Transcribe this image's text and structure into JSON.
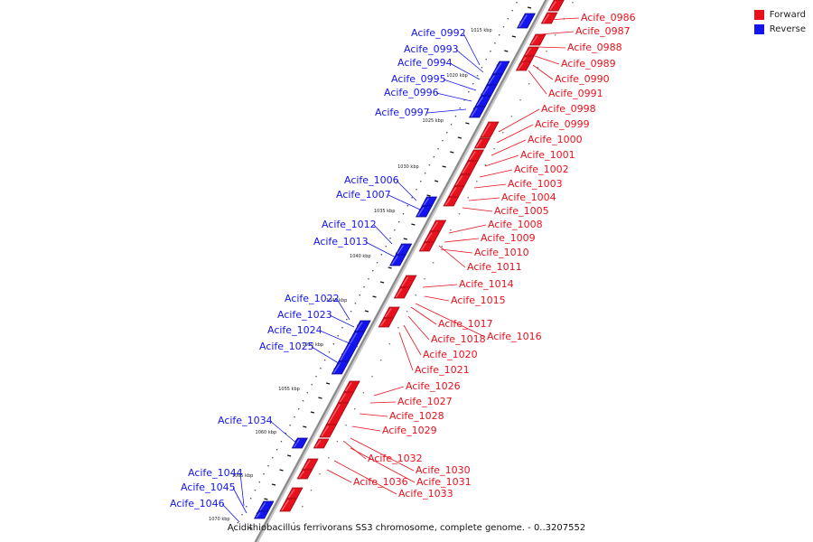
{
  "caption": "Acidithiobacillus ferrivorans SS3 chromosome, complete genome. - 0..3207552",
  "legend": {
    "forward_label": "Forward",
    "reverse_label": "Reverse",
    "forward_color": "#e8101c",
    "reverse_color": "#1414ee"
  },
  "kbp_ticks": [
    "1015 kbp",
    "1020 kbp",
    "1025 kbp",
    "1030 kbp",
    "1035 kbp",
    "1040 kbp",
    "1045 kbp",
    "1050 kbp",
    "1055 kbp",
    "1060 kbp",
    "1065 kbp",
    "1070 kbp"
  ],
  "reverse_genes": [
    "Acife_0992",
    "Acife_0993",
    "Acife_0994",
    "Acife_0995",
    "Acife_0996",
    "Acife_0997",
    "Acife_1006",
    "Acife_1007",
    "Acife_1012",
    "Acife_1013",
    "Acife_1022",
    "Acife_1023",
    "Acife_1024",
    "Acife_1025",
    "Acife_1034",
    "Acife_1044",
    "Acife_1045",
    "Acife_1046"
  ],
  "forward_genes": [
    "Acife_0986",
    "Acife_0987",
    "Acife_0988",
    "Acife_0989",
    "Acife_0990",
    "Acife_0991",
    "Acife_0998",
    "Acife_0999",
    "Acife_1000",
    "Acife_1001",
    "Acife_1002",
    "Acife_1003",
    "Acife_1004",
    "Acife_1005",
    "Acife_1008",
    "Acife_1009",
    "Acife_1010",
    "Acife_1011",
    "Acife_1014",
    "Acife_1015",
    "Acife_1017",
    "Acife_1016",
    "Acife_1018",
    "Acife_1020",
    "Acife_1021",
    "Acife_1026",
    "Acife_1027",
    "Acife_1028",
    "Acife_1029",
    "Acife_1032",
    "Acife_1030",
    "Acife_1031",
    "Acife_1036",
    "Acife_1033"
  ]
}
